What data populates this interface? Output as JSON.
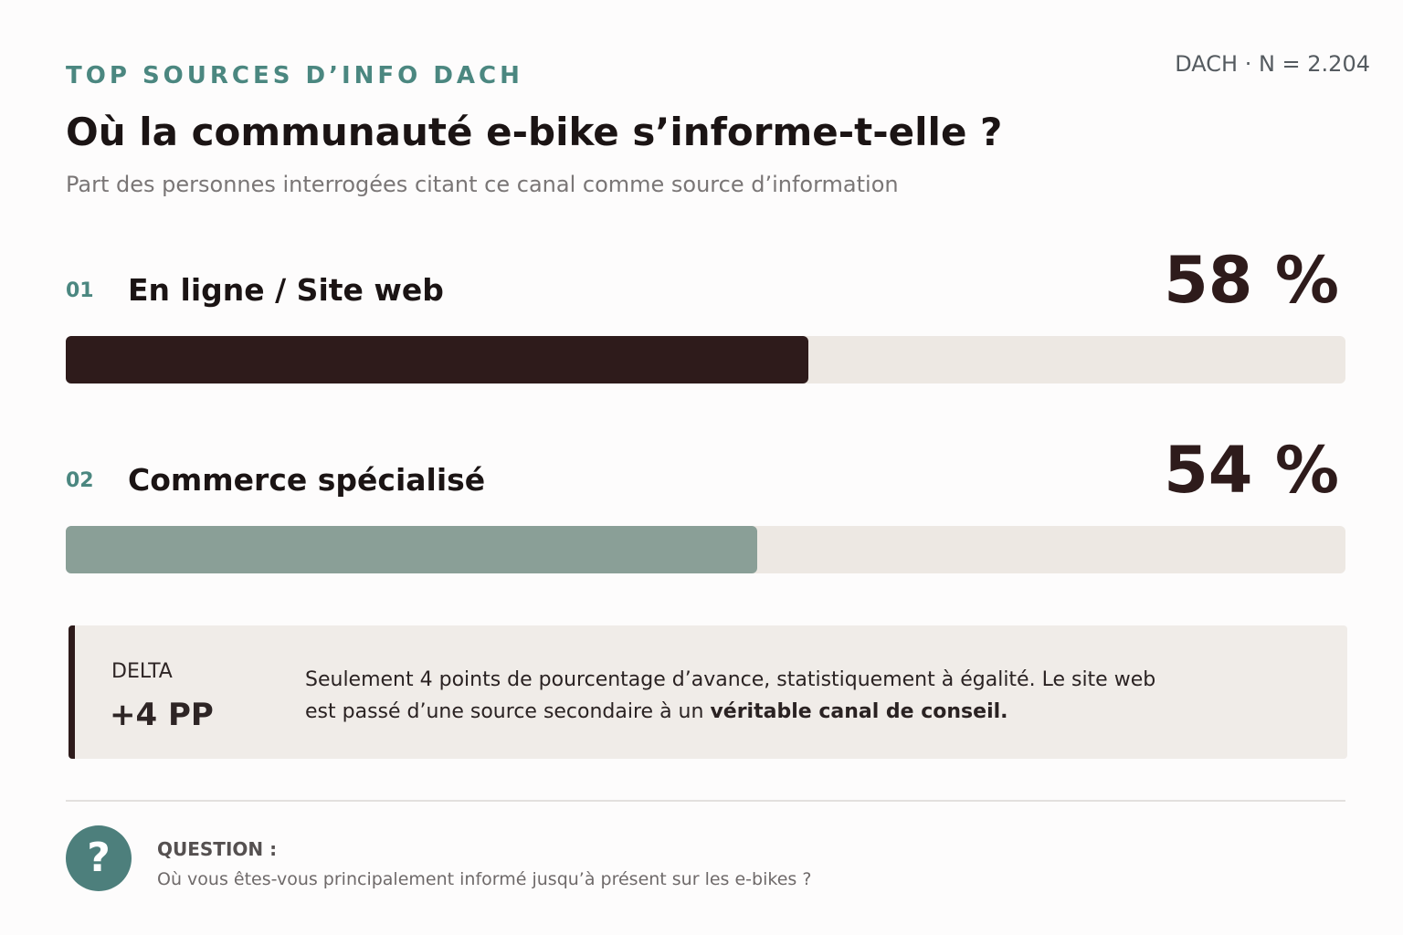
{
  "chart_data": {
    "type": "bar",
    "eyebrow": "TOP SOURCES D’INFO DACH",
    "sample": "DACH · N = 2.204",
    "title": "Où la communauté e-bike s’informe-t-elle ?",
    "subtitle": "Part des personnes interrogées citant ce canal comme source d’information",
    "categories": [
      "En ligne / Site web",
      "Commerce spécialisé"
    ],
    "ranks": [
      "01",
      "02"
    ],
    "values": [
      58,
      54
    ],
    "value_labels": [
      "58 %",
      "54 %"
    ],
    "colors": [
      "#2e1b1b",
      "#8a9f97"
    ],
    "track_color": "#ede8e3",
    "xlim": [
      0,
      100
    ]
  },
  "callout": {
    "label": "DELTA",
    "value": "+4 PP",
    "text": "Seulement 4 points de pourcentage d’avance, statistiquement à égalité. Le site web est passé d’une source secondaire à un ",
    "text_bold": "véritable canal de conseil."
  },
  "question": {
    "icon": "?",
    "label": "QUESTION :",
    "text": "Où vous êtes-vous principalement informé jusqu’à présent sur les e-bikes ?"
  }
}
